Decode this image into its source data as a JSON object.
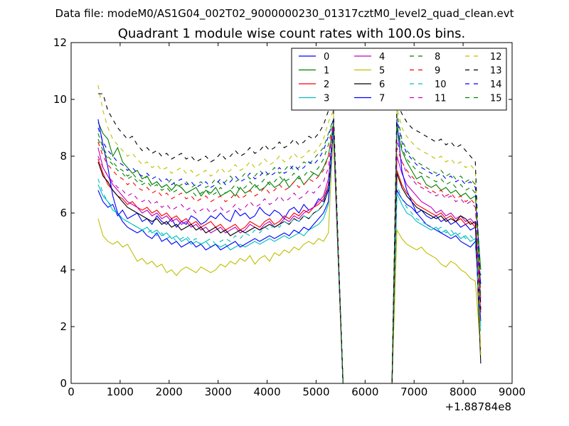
{
  "chart_data": {
    "type": "line",
    "suptitle": "Data file: modeM0/AS1G04_002T02_9000000230_01317cztM0_level2_quad_clean.evt",
    "title": "Quadrant 1 module wise count rates with 100.0s bins.",
    "xlabel": "",
    "ylabel": "",
    "x_offset_label": "+1.88784e8",
    "xlim": [
      0,
      9000
    ],
    "ylim": [
      0,
      12
    ],
    "xticks": [
      0,
      1000,
      2000,
      3000,
      4000,
      5000,
      6000,
      7000,
      8000,
      9000
    ],
    "yticks": [
      0,
      2,
      4,
      6,
      8,
      10,
      12
    ],
    "legend_position": "top-right",
    "legend_columns": 4,
    "segments": [
      {
        "x_start": 550,
        "x_end": 5450,
        "step": 100
      },
      {
        "x_start": 5450,
        "x_end": 6550,
        "step": 100
      },
      {
        "x_start": 6650,
        "x_end": 8350,
        "step": 100
      }
    ],
    "series": [
      {
        "name": "0",
        "color": "#0000ff",
        "dash": "solid",
        "first_seg": [
          6.8,
          6.4,
          6.2,
          6.3,
          5.9,
          6.1,
          5.8,
          5.9,
          6.0,
          5.7,
          5.8,
          5.6,
          5.9,
          5.7,
          5.6,
          5.8,
          5.5,
          5.7,
          5.6,
          5.9,
          5.8,
          5.6,
          5.7,
          5.9,
          5.8,
          6.0,
          5.8,
          5.7,
          6.1,
          5.9,
          6.0,
          5.8,
          5.9,
          6.2,
          6.0,
          5.9,
          6.1,
          6.0,
          5.8,
          6.1,
          6.2,
          6.0,
          6.3,
          6.1,
          6.2,
          6.5,
          6.4,
          6.9,
          9.0
        ],
        "second_seg": [
          6.8,
          6.5,
          6.3,
          6.2,
          6.0,
          6.1,
          5.9,
          5.8,
          5.9,
          5.7,
          5.8,
          5.6,
          5.7,
          5.5,
          5.6,
          5.4,
          5.5
        ],
        "end_value": 3.5
      },
      {
        "name": "1",
        "color": "#008000",
        "dash": "solid",
        "first_seg": [
          9.2,
          8.8,
          8.6,
          8.0,
          8.3,
          7.8,
          7.6,
          7.4,
          7.5,
          7.2,
          7.3,
          7.0,
          7.1,
          6.9,
          7.0,
          6.8,
          7.0,
          6.9,
          6.7,
          6.8,
          6.9,
          6.6,
          6.8,
          6.7,
          6.9,
          6.6,
          6.7,
          6.8,
          6.6,
          6.9,
          6.7,
          6.8,
          7.0,
          6.8,
          6.9,
          7.1,
          6.9,
          7.0,
          7.2,
          6.9,
          7.1,
          7.3,
          7.0,
          7.2,
          7.4,
          7.3,
          7.6,
          8.0,
          9.1
        ],
        "second_seg": [
          9.0,
          8.2,
          7.8,
          7.5,
          7.2,
          7.3,
          7.0,
          6.9,
          7.0,
          6.8,
          6.9,
          6.7,
          6.8,
          6.6,
          6.7,
          6.5,
          6.6
        ],
        "end_value": 4.0
      },
      {
        "name": "2",
        "color": "#ff0000",
        "dash": "solid",
        "first_seg": [
          7.9,
          7.4,
          7.0,
          6.8,
          6.6,
          6.5,
          6.3,
          6.4,
          6.2,
          6.1,
          6.2,
          6.0,
          6.1,
          5.9,
          6.0,
          5.8,
          5.9,
          5.7,
          5.8,
          5.6,
          5.7,
          5.5,
          5.6,
          5.7,
          5.5,
          5.6,
          5.4,
          5.5,
          5.6,
          5.4,
          5.5,
          5.7,
          5.6,
          5.5,
          5.7,
          5.8,
          5.6,
          5.7,
          5.9,
          5.8,
          6.0,
          5.9,
          6.1,
          6.0,
          6.2,
          6.3,
          6.5,
          7.0,
          9.0
        ],
        "second_seg": [
          7.5,
          7.0,
          6.7,
          6.5,
          6.3,
          6.2,
          6.1,
          6.0,
          5.9,
          6.0,
          5.8,
          5.9,
          5.7,
          5.8,
          5.6,
          5.7,
          5.5
        ],
        "end_value": 2.5
      },
      {
        "name": "3",
        "color": "#00bfbf",
        "dash": "solid",
        "first_seg": [
          7.0,
          6.6,
          6.4,
          6.1,
          6.0,
          5.8,
          5.7,
          5.6,
          5.5,
          5.4,
          5.5,
          5.3,
          5.4,
          5.2,
          5.3,
          5.1,
          5.2,
          5.0,
          5.1,
          4.9,
          5.0,
          4.9,
          5.0,
          4.8,
          4.9,
          4.8,
          4.9,
          4.7,
          4.8,
          4.9,
          4.8,
          4.9,
          5.0,
          4.9,
          5.0,
          5.1,
          5.0,
          5.1,
          5.2,
          5.1,
          5.2,
          5.3,
          5.2,
          5.4,
          5.5,
          5.6,
          5.8,
          6.3,
          9.0
        ],
        "second_seg": [
          6.7,
          6.3,
          6.0,
          5.9,
          5.7,
          5.6,
          5.5,
          5.4,
          5.5,
          5.3,
          5.4,
          5.2,
          5.3,
          5.1,
          5.2,
          5.0,
          5.1
        ],
        "end_value": 2.0
      },
      {
        "name": "4",
        "color": "#bf00bf",
        "dash": "solid",
        "first_seg": [
          8.3,
          7.6,
          7.3,
          7.0,
          6.8,
          6.6,
          6.4,
          6.3,
          6.2,
          6.0,
          6.1,
          5.9,
          6.0,
          5.8,
          5.9,
          5.7,
          5.8,
          5.6,
          5.7,
          5.5,
          5.6,
          5.4,
          5.5,
          5.3,
          5.4,
          5.5,
          5.3,
          5.4,
          5.5,
          5.3,
          5.4,
          5.6,
          5.5,
          5.4,
          5.6,
          5.7,
          5.5,
          5.6,
          5.8,
          5.7,
          5.9,
          5.8,
          6.0,
          6.1,
          6.2,
          6.4,
          6.6,
          7.2,
          9.0
        ],
        "second_seg": [
          8.0,
          7.4,
          7.0,
          6.8,
          6.6,
          6.4,
          6.3,
          6.2,
          6.0,
          6.1,
          5.9,
          6.0,
          5.8,
          5.9,
          5.7,
          5.8,
          5.6
        ],
        "end_value": 3.0
      },
      {
        "name": "5",
        "color": "#bfbf00",
        "dash": "solid",
        "first_seg": [
          5.8,
          5.2,
          5.0,
          4.9,
          5.0,
          4.8,
          4.9,
          4.6,
          4.3,
          4.4,
          4.2,
          4.3,
          4.1,
          4.2,
          3.9,
          4.0,
          3.8,
          4.0,
          4.1,
          4.0,
          3.9,
          4.1,
          4.0,
          3.9,
          4.0,
          4.2,
          4.1,
          4.3,
          4.2,
          4.4,
          4.3,
          4.5,
          4.2,
          4.4,
          4.5,
          4.3,
          4.6,
          4.5,
          4.7,
          4.6,
          4.8,
          4.7,
          4.9,
          5.0,
          4.9,
          5.1,
          5.0,
          5.3,
          8.8
        ],
        "second_seg": [
          5.4,
          5.1,
          4.9,
          4.8,
          4.7,
          4.8,
          4.6,
          4.5,
          4.4,
          4.2,
          4.1,
          4.3,
          4.2,
          4.0,
          3.9,
          3.7,
          3.6
        ],
        "end_value": 1.2
      },
      {
        "name": "6",
        "color": "#000000",
        "dash": "solid",
        "first_seg": [
          7.8,
          7.3,
          7.1,
          6.8,
          6.6,
          6.4,
          6.2,
          6.1,
          6.0,
          5.9,
          5.8,
          5.7,
          5.8,
          5.6,
          5.7,
          5.5,
          5.6,
          5.4,
          5.5,
          5.6,
          5.4,
          5.5,
          5.3,
          5.4,
          5.5,
          5.3,
          5.4,
          5.2,
          5.3,
          5.4,
          5.3,
          5.4,
          5.5,
          5.4,
          5.5,
          5.6,
          5.5,
          5.6,
          5.7,
          5.6,
          5.8,
          5.7,
          5.9,
          5.8,
          6.0,
          6.1,
          6.3,
          6.8,
          9.0
        ],
        "second_seg": [
          7.4,
          6.9,
          6.6,
          6.4,
          6.2,
          6.1,
          6.0,
          5.9,
          5.8,
          5.9,
          5.7,
          5.8,
          5.7,
          5.9,
          5.8,
          5.6,
          5.7
        ],
        "end_value": 0.7
      },
      {
        "name": "7",
        "color": "#0000ff",
        "dash": "solid",
        "first_seg": [
          9.3,
          8.4,
          7.6,
          6.6,
          6.0,
          5.7,
          5.5,
          5.4,
          5.3,
          5.4,
          5.2,
          5.1,
          5.3,
          5.0,
          5.1,
          4.9,
          5.0,
          4.8,
          4.9,
          5.0,
          4.8,
          4.9,
          4.7,
          4.8,
          4.9,
          4.7,
          4.8,
          4.9,
          5.0,
          4.8,
          4.9,
          5.0,
          5.1,
          5.0,
          5.1,
          5.2,
          5.1,
          5.2,
          5.3,
          5.2,
          5.4,
          5.3,
          5.5,
          5.4,
          5.6,
          5.8,
          6.0,
          6.4,
          9.0
        ],
        "second_seg": [
          9.2,
          7.5,
          6.8,
          6.4,
          6.0,
          5.8,
          5.6,
          5.5,
          5.4,
          5.3,
          5.2,
          5.1,
          5.2,
          5.0,
          4.9,
          4.8,
          5.0
        ],
        "end_value": 2.2
      },
      {
        "name": "8",
        "color": "#008000",
        "dash": "dashed",
        "first_seg": [
          8.8,
          8.3,
          8.0,
          7.8,
          7.6,
          7.5,
          7.3,
          7.4,
          7.2,
          7.1,
          7.3,
          7.0,
          7.1,
          6.9,
          7.0,
          7.2,
          6.9,
          7.0,
          7.1,
          6.9,
          7.0,
          7.1,
          6.9,
          7.0,
          7.2,
          7.0,
          7.1,
          7.3,
          7.1,
          7.2,
          7.4,
          7.2,
          7.3,
          7.5,
          7.3,
          7.4,
          7.6,
          7.4,
          7.5,
          7.7,
          7.5,
          7.6,
          7.8,
          7.7,
          7.9,
          8.1,
          8.3,
          8.8,
          9.3
        ],
        "second_seg": [
          9.5,
          8.6,
          8.2,
          8.0,
          7.8,
          7.7,
          7.6,
          7.5,
          7.4,
          7.5,
          7.3,
          7.4,
          7.2,
          7.3,
          7.1,
          7.2,
          7.0
        ],
        "end_value": 3.8
      },
      {
        "name": "9",
        "color": "#ff0000",
        "dash": "dashed",
        "first_seg": [
          8.5,
          8.0,
          7.7,
          7.5,
          7.3,
          7.2,
          7.0,
          7.1,
          6.9,
          6.8,
          6.9,
          6.7,
          6.8,
          6.6,
          6.7,
          6.5,
          6.6,
          6.7,
          6.5,
          6.6,
          6.4,
          6.5,
          6.6,
          6.4,
          6.5,
          6.6,
          6.4,
          6.5,
          6.7,
          6.5,
          6.6,
          6.8,
          6.6,
          6.7,
          6.9,
          6.7,
          6.8,
          7.0,
          6.8,
          6.9,
          7.1,
          6.9,
          7.0,
          7.2,
          7.1,
          7.3,
          7.5,
          8.0,
          9.2
        ],
        "second_seg": [
          8.3,
          7.8,
          7.5,
          7.3,
          7.1,
          7.0,
          6.9,
          6.8,
          6.7,
          6.8,
          6.6,
          6.7,
          6.5,
          6.6,
          6.4,
          6.5,
          6.3
        ],
        "end_value": 3.2
      },
      {
        "name": "10",
        "color": "#00bfbf",
        "dash": "dashed",
        "first_seg": [
          7.2,
          6.7,
          6.4,
          6.2,
          6.0,
          5.8,
          5.7,
          5.6,
          5.5,
          5.4,
          5.3,
          5.4,
          5.2,
          5.3,
          5.1,
          5.2,
          5.0,
          5.1,
          5.2,
          5.0,
          5.1,
          4.9,
          5.0,
          5.1,
          4.9,
          5.0,
          5.1,
          5.0,
          5.2,
          5.1,
          5.3,
          5.2,
          5.4,
          5.3,
          5.5,
          5.4,
          5.6,
          5.5,
          5.7,
          5.6,
          5.8,
          5.7,
          5.9,
          5.8,
          6.0,
          6.1,
          6.3,
          6.9,
          9.0
        ],
        "second_seg": [
          7.0,
          6.5,
          6.2,
          6.0,
          5.8,
          5.7,
          5.6,
          5.5,
          5.4,
          5.5,
          5.3,
          5.4,
          5.2,
          5.3,
          5.1,
          5.2,
          5.0
        ],
        "end_value": 1.8
      },
      {
        "name": "11",
        "color": "#bf00bf",
        "dash": "dashed",
        "first_seg": [
          8.0,
          7.6,
          7.3,
          7.1,
          6.9,
          6.8,
          6.6,
          6.7,
          6.5,
          6.4,
          6.5,
          6.3,
          6.4,
          6.2,
          6.3,
          6.1,
          6.2,
          6.3,
          6.1,
          6.2,
          6.0,
          6.1,
          6.2,
          6.0,
          6.1,
          6.2,
          6.0,
          6.1,
          6.3,
          6.1,
          6.2,
          6.4,
          6.2,
          6.3,
          6.5,
          6.3,
          6.4,
          6.6,
          6.4,
          6.5,
          6.7,
          6.5,
          6.6,
          6.8,
          6.7,
          6.9,
          7.1,
          7.6,
          9.1
        ],
        "second_seg": [
          8.6,
          7.8,
          7.4,
          7.2,
          7.0,
          6.9,
          6.8,
          6.7,
          6.6,
          6.7,
          6.5,
          6.6,
          6.4,
          6.5,
          6.3,
          6.4,
          6.2
        ],
        "end_value": 2.8
      },
      {
        "name": "12",
        "color": "#bfbf00",
        "dash": "dashed",
        "first_seg": [
          10.5,
          9.6,
          9.0,
          8.6,
          8.4,
          8.2,
          8.0,
          8.1,
          7.9,
          7.7,
          7.8,
          7.6,
          7.7,
          7.5,
          7.6,
          7.4,
          7.5,
          7.6,
          7.4,
          7.5,
          7.3,
          7.4,
          7.5,
          7.3,
          7.4,
          7.6,
          7.4,
          7.5,
          7.7,
          7.5,
          7.6,
          7.8,
          7.6,
          7.7,
          7.9,
          7.7,
          7.8,
          8.0,
          7.8,
          7.9,
          8.1,
          7.9,
          8.0,
          8.2,
          8.1,
          8.3,
          8.6,
          9.2,
          9.6
        ],
        "second_seg": [
          9.7,
          9.0,
          8.7,
          8.5,
          8.3,
          8.2,
          8.1,
          8.0,
          7.9,
          8.0,
          7.8,
          7.9,
          7.7,
          7.8,
          7.6,
          7.7,
          7.5
        ],
        "end_value": 1.0
      },
      {
        "name": "13",
        "color": "#000000",
        "dash": "dashed",
        "first_seg": [
          10.2,
          10.2,
          9.6,
          9.3,
          9.0,
          8.8,
          8.6,
          8.7,
          8.4,
          8.2,
          8.3,
          8.1,
          8.2,
          8.0,
          8.1,
          7.9,
          8.0,
          8.1,
          7.9,
          8.0,
          7.8,
          7.9,
          8.0,
          7.8,
          7.9,
          8.1,
          7.9,
          8.0,
          8.2,
          8.0,
          8.1,
          8.3,
          8.1,
          8.2,
          8.4,
          8.2,
          8.3,
          8.5,
          8.3,
          8.4,
          8.6,
          8.4,
          8.5,
          8.7,
          8.6,
          8.8,
          9.1,
          9.6,
          9.8
        ],
        "second_seg": [
          9.9,
          9.5,
          9.2,
          9.0,
          8.9,
          8.8,
          8.7,
          8.6,
          8.5,
          8.6,
          8.4,
          8.5,
          8.3,
          8.4,
          8.2,
          8.0,
          7.8
        ],
        "end_value": 2.6
      },
      {
        "name": "14",
        "color": "#0000ff",
        "dash": "dashed",
        "first_seg": [
          9.0,
          8.5,
          8.2,
          8.0,
          7.8,
          7.7,
          7.5,
          7.6,
          7.4,
          7.3,
          7.4,
          7.2,
          7.3,
          7.1,
          7.2,
          7.0,
          7.1,
          7.2,
          7.0,
          7.1,
          6.9,
          7.0,
          7.1,
          6.9,
          7.0,
          7.2,
          7.0,
          7.1,
          7.3,
          7.1,
          7.2,
          7.4,
          7.2,
          7.3,
          7.5,
          7.3,
          7.4,
          7.6,
          7.4,
          7.5,
          7.7,
          7.5,
          7.6,
          7.8,
          7.7,
          7.9,
          8.2,
          8.7,
          9.3
        ],
        "second_seg": [
          9.3,
          8.5,
          8.1,
          7.9,
          7.7,
          7.6,
          7.5,
          7.4,
          7.3,
          7.4,
          7.2,
          7.3,
          7.1,
          7.2,
          7.0,
          7.1,
          6.9
        ],
        "end_value": 3.4
      },
      {
        "name": "15",
        "color": "#008000",
        "dash": "dashed",
        "first_seg": [
          8.6,
          8.2,
          7.9,
          7.7,
          7.5,
          7.4,
          7.2,
          7.3,
          7.1,
          7.0,
          7.1,
          6.9,
          7.0,
          6.8,
          6.9,
          6.7,
          6.8,
          6.9,
          6.7,
          6.8,
          6.6,
          6.7,
          6.8,
          6.6,
          6.7,
          6.9,
          6.7,
          6.8,
          7.0,
          6.8,
          6.9,
          7.1,
          6.9,
          7.0,
          7.2,
          7.0,
          7.1,
          7.3,
          7.1,
          7.2,
          7.4,
          7.2,
          7.3,
          7.5,
          7.4,
          7.6,
          7.9,
          8.4,
          9.2
        ],
        "second_seg": [
          9.1,
          8.3,
          7.9,
          7.7,
          7.5,
          7.4,
          7.3,
          7.2,
          7.1,
          7.2,
          7.0,
          7.1,
          6.9,
          7.0,
          6.8,
          6.9,
          6.7
        ],
        "end_value": 3.0
      }
    ]
  }
}
